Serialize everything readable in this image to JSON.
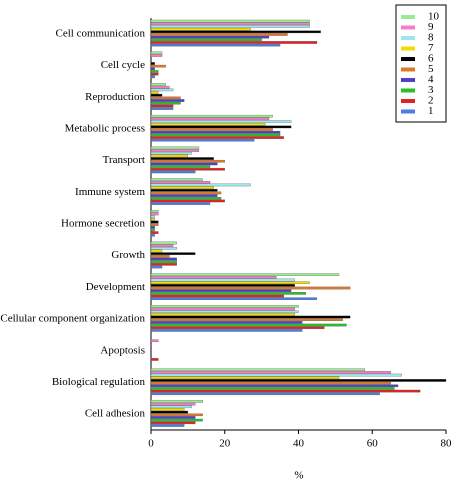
{
  "chart_data": {
    "type": "barh",
    "categories": [
      "Cell communication",
      "Cell cycle",
      "Reproduction",
      "Metabolic process",
      "Transport",
      "Immune system",
      "Hormone secretion",
      "Growth",
      "Development",
      "Cellular component organization",
      "Apoptosis",
      "Biological regulation",
      "Cell adhesion"
    ],
    "series": [
      {
        "name": "1",
        "color": "#4a7ee0",
        "values": [
          35,
          1,
          6,
          28,
          12,
          16,
          1,
          3,
          45,
          41,
          0,
          62,
          9
        ]
      },
      {
        "name": "2",
        "color": "#e02424",
        "values": [
          45,
          2,
          6,
          36,
          20,
          20,
          2,
          7,
          36,
          47,
          2,
          73,
          12
        ]
      },
      {
        "name": "3",
        "color": "#28c028",
        "values": [
          30,
          2,
          8,
          35,
          16,
          19,
          1,
          7,
          42,
          53,
          0,
          66,
          14
        ]
      },
      {
        "name": "4",
        "color": "#5040c8",
        "values": [
          32,
          1,
          9,
          35,
          18,
          18,
          1,
          7,
          38,
          41,
          0,
          67,
          12
        ]
      },
      {
        "name": "5",
        "color": "#e07828",
        "values": [
          37,
          4,
          8,
          33,
          20,
          19,
          2,
          5,
          54,
          52,
          0,
          65,
          14
        ]
      },
      {
        "name": "6",
        "color": "#000000",
        "values": [
          46,
          1,
          3,
          38,
          17,
          18,
          2,
          12,
          39,
          54,
          0,
          80,
          10
        ]
      },
      {
        "name": "7",
        "color": "#f0dc00",
        "values": [
          27,
          0,
          2,
          31,
          10,
          17,
          1,
          3,
          43,
          39,
          0,
          51,
          9
        ]
      },
      {
        "name": "8",
        "color": "#a0e6f0",
        "values": [
          43,
          0,
          6,
          38,
          11,
          27,
          1,
          7,
          39,
          40,
          0,
          68,
          11
        ]
      },
      {
        "name": "9",
        "color": "#f47cc8",
        "values": [
          43,
          3,
          5,
          32,
          13,
          16,
          2,
          6,
          34,
          39,
          2,
          65,
          12
        ]
      },
      {
        "name": "10",
        "color": "#98ec90",
        "values": [
          43,
          3,
          4,
          33,
          13,
          14,
          2,
          7,
          51,
          40,
          0,
          58,
          14
        ]
      }
    ],
    "xlabel": "%",
    "xlim": [
      0,
      80
    ],
    "xticks": [
      0,
      20,
      40,
      60,
      80
    ]
  }
}
